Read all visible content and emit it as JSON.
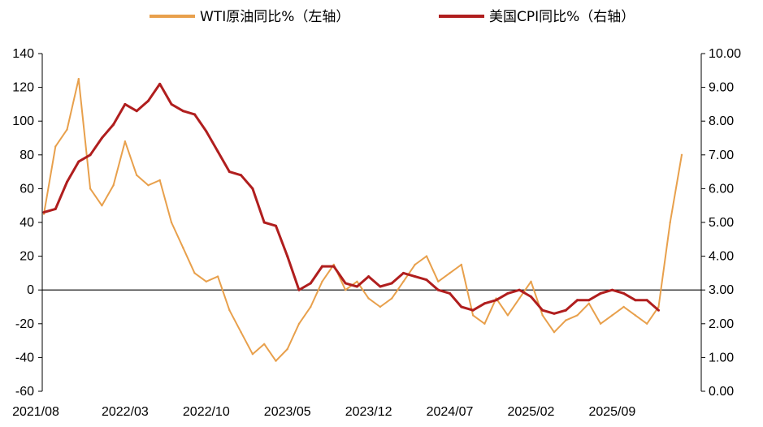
{
  "colors": {
    "wti": "#E8A04C",
    "cpi": "#B01E1E",
    "axis": "#000000"
  },
  "chart_data": {
    "type": "line",
    "legend_placement": "top",
    "grid": false,
    "x_ticks": [
      "2021/08",
      "2022/03",
      "2022/10",
      "2023/05",
      "2023/12",
      "2024/07",
      "2025/02",
      "2025/09"
    ],
    "y_left": {
      "ylim": [
        -60,
        140
      ],
      "ticks": [
        "-60",
        "-40",
        "-20",
        "0",
        "20",
        "40",
        "60",
        "80",
        "100",
        "120",
        "140"
      ]
    },
    "y_right": {
      "ylim": [
        0,
        10
      ],
      "ticks": [
        "0.00",
        "1.00",
        "2.00",
        "3.00",
        "4.00",
        "5.00",
        "6.00",
        "7.00",
        "8.00",
        "9.00",
        "10.00"
      ]
    },
    "series": [
      {
        "name": "WTI原油同比%（左轴）",
        "axis": "left",
        "x": [
          "2021/08",
          "2021/09",
          "2021/10",
          "2021/11",
          "2021/12",
          "2022/01",
          "2022/02",
          "2022/03",
          "2022/04",
          "2022/05",
          "2022/06",
          "2022/07",
          "2022/08",
          "2022/09",
          "2022/10",
          "2022/11",
          "2022/12",
          "2023/01",
          "2023/02",
          "2023/03",
          "2023/04",
          "2023/05",
          "2023/06",
          "2023/07",
          "2023/08",
          "2023/09",
          "2023/10",
          "2023/11",
          "2023/12",
          "2024/01",
          "2024/02",
          "2024/03",
          "2024/04",
          "2024/05",
          "2024/06",
          "2024/07",
          "2024/08",
          "2024/09",
          "2024/10",
          "2024/11",
          "2024/12",
          "2025/01",
          "2025/02",
          "2025/03",
          "2025/04",
          "2025/05",
          "2025/06",
          "2025/07",
          "2025/08",
          "2025/09",
          "2025/10",
          "2025/11",
          "2025/12",
          "2026/01",
          "2026/02",
          "2026/03"
        ],
        "values": [
          45,
          85,
          95,
          125,
          60,
          50,
          62,
          88,
          68,
          62,
          65,
          40,
          25,
          10,
          5,
          8,
          -12,
          -25,
          -38,
          -32,
          -42,
          -35,
          -20,
          -10,
          5,
          15,
          0,
          5,
          -5,
          -10,
          -5,
          5,
          15,
          20,
          5,
          10,
          15,
          -15,
          -20,
          -5,
          -15,
          -5,
          5,
          -15,
          -25,
          -18,
          -15,
          -8,
          -20,
          -15,
          -10,
          -15,
          -20,
          -10,
          40,
          80
        ]
      },
      {
        "name": "美国CPI同比%（右轴）",
        "axis": "right",
        "x": [
          "2021/08",
          "2021/09",
          "2021/10",
          "2021/11",
          "2021/12",
          "2022/01",
          "2022/02",
          "2022/03",
          "2022/04",
          "2022/05",
          "2022/06",
          "2022/07",
          "2022/08",
          "2022/09",
          "2022/10",
          "2022/11",
          "2022/12",
          "2023/01",
          "2023/02",
          "2023/03",
          "2023/04",
          "2023/05",
          "2023/06",
          "2023/07",
          "2023/08",
          "2023/09",
          "2023/10",
          "2023/11",
          "2023/12",
          "2024/01",
          "2024/02",
          "2024/03",
          "2024/04",
          "2024/05",
          "2024/06",
          "2024/07",
          "2024/08",
          "2024/09",
          "2024/10",
          "2024/11",
          "2024/12",
          "2025/01",
          "2025/02",
          "2025/03",
          "2025/04",
          "2025/05",
          "2025/06",
          "2025/07",
          "2025/08",
          "2025/09",
          "2025/10",
          "2025/11",
          "2025/12",
          "2026/01"
        ],
        "values": [
          5.3,
          5.4,
          6.2,
          6.8,
          7.0,
          7.5,
          7.9,
          8.5,
          8.3,
          8.6,
          9.1,
          8.5,
          8.3,
          8.2,
          7.7,
          7.1,
          6.5,
          6.4,
          6.0,
          5.0,
          4.9,
          4.0,
          3.0,
          3.2,
          3.7,
          3.7,
          3.2,
          3.1,
          3.4,
          3.1,
          3.2,
          3.5,
          3.4,
          3.3,
          3.0,
          2.9,
          2.5,
          2.4,
          2.6,
          2.7,
          2.9,
          3.0,
          2.8,
          2.4,
          2.3,
          2.4,
          2.7,
          2.7,
          2.9,
          3.0,
          2.9,
          2.7,
          2.7,
          2.4
        ]
      }
    ]
  }
}
